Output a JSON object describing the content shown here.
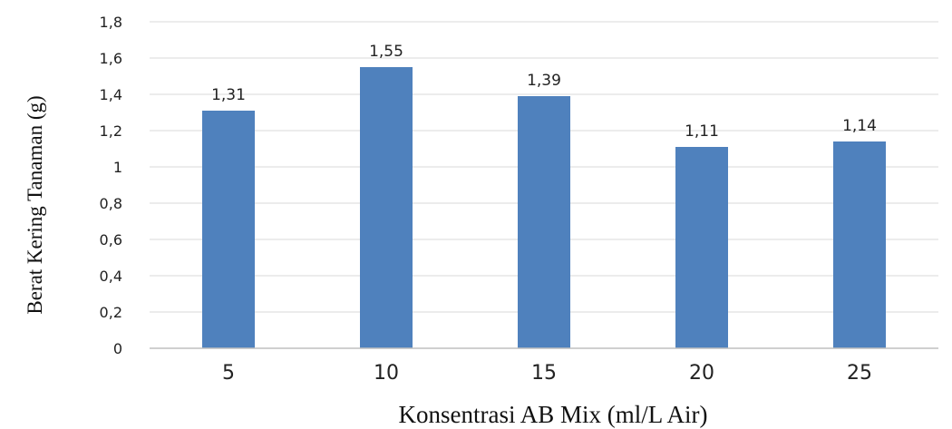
{
  "chart_data": {
    "type": "bar",
    "categories": [
      "5",
      "10",
      "15",
      "20",
      "25"
    ],
    "values": [
      1.31,
      1.55,
      1.39,
      1.11,
      1.14
    ],
    "value_labels": [
      "1,31",
      "1,55",
      "1,39",
      "1,11",
      "1,14"
    ],
    "xlabel": "Konsentrasi AB Mix (ml/L Air)",
    "ylabel": "Berat Kering Tanaman (g)",
    "ylim": [
      0,
      1.8
    ],
    "yticks": [
      0,
      0.2,
      0.4,
      0.6,
      0.8,
      1,
      1.2,
      1.4,
      1.6,
      1.8
    ],
    "ytick_labels": [
      "0",
      "0,2",
      "0,4",
      "0,6",
      "0,8",
      "1",
      "1,2",
      "1,4",
      "1,6",
      "1,8"
    ],
    "grid": true,
    "legend": "none",
    "colors": {
      "bar": "#4f81bd",
      "grid": "#d9d9d9",
      "axis": "#bfbfbf"
    }
  }
}
